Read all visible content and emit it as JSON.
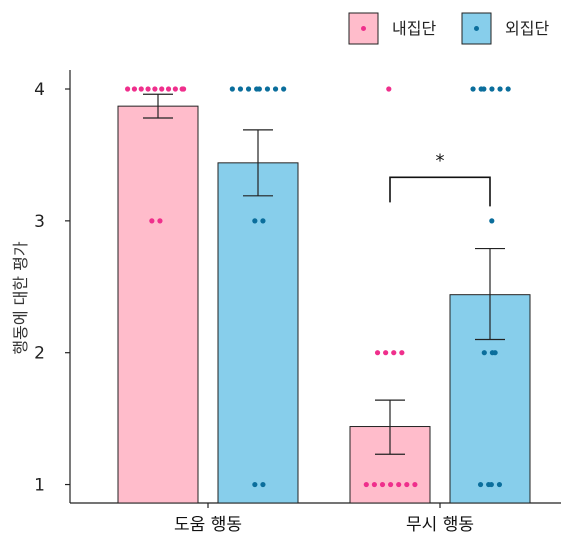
{
  "chart_data": {
    "type": "bar",
    "ylabel": "행동에 대한 평가",
    "ylim": [
      0.86,
      4.22
    ],
    "yticks": [
      1,
      2,
      3,
      4
    ],
    "categories": [
      "도움 행동",
      "무시 행동"
    ],
    "series": [
      {
        "name": "내집단",
        "bar_color": "#ffbccb",
        "dot_color": "#ef2f8c",
        "values": [
          3.87,
          1.44
        ],
        "error_low": [
          3.78,
          1.23
        ],
        "error_high": [
          3.96,
          1.64
        ],
        "points": [
          [
            4,
            4,
            4,
            4,
            4,
            4,
            4,
            4,
            4,
            4,
            3,
            3
          ],
          [
            4,
            2,
            2,
            2,
            2,
            1,
            1,
            1,
            1,
            1,
            1,
            1
          ]
        ]
      },
      {
        "name": "외집단",
        "bar_color": "#87ceeb",
        "dot_color": "#0b6e9c",
        "values": [
          3.44,
          2.44
        ],
        "error_low": [
          3.19,
          2.1
        ],
        "error_high": [
          3.69,
          2.79
        ],
        "points": [
          [
            4,
            4,
            4,
            4,
            4,
            4,
            4,
            4,
            3,
            3,
            1,
            1
          ],
          [
            4,
            4,
            4,
            4,
            4,
            4,
            3,
            2,
            2,
            2,
            1,
            1,
            1,
            1
          ]
        ]
      }
    ],
    "annotations": [
      {
        "text": "*",
        "category": "무시 행동",
        "between": [
          "내집단",
          "외집단"
        ]
      }
    ],
    "legend_position": "top-right",
    "grid": false
  }
}
